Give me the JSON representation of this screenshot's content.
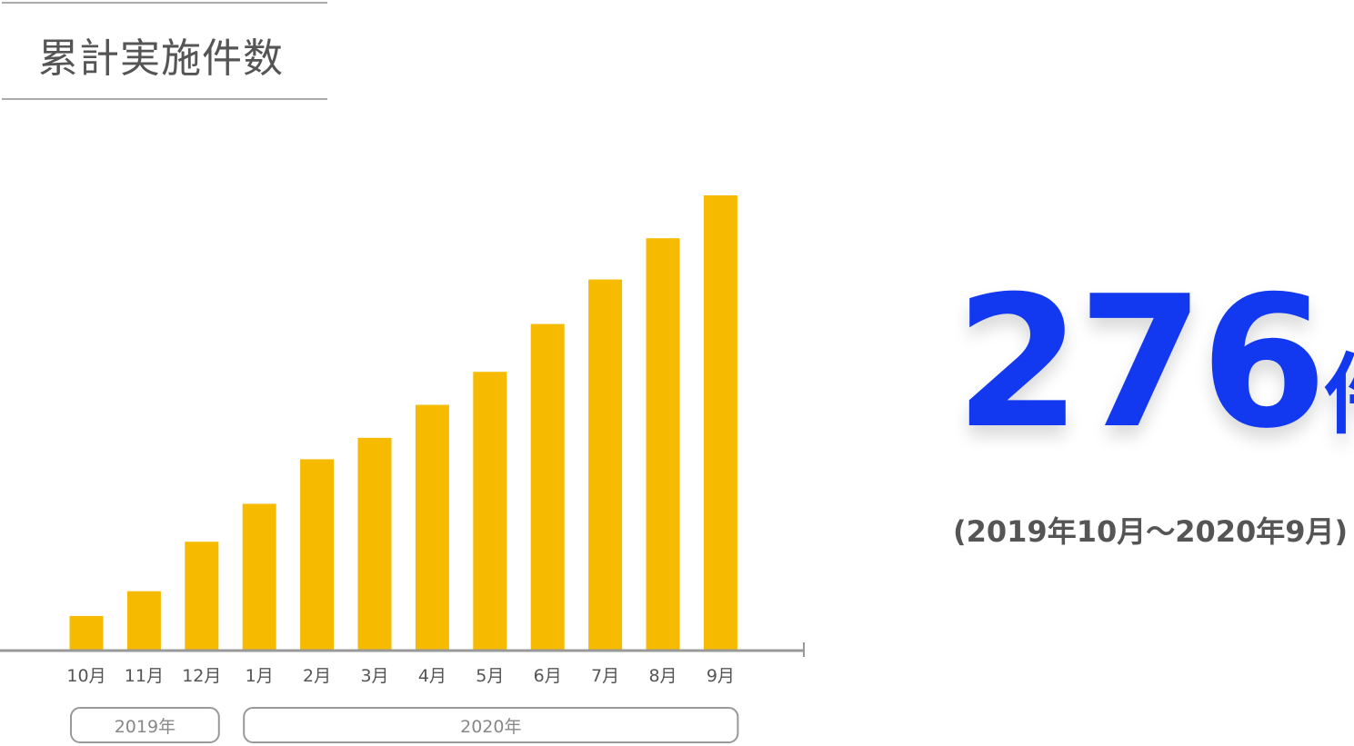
{
  "title": "累計実施件数",
  "total": {
    "value": "276",
    "unit": "件",
    "period": "(2019年10月〜2020年9月)"
  },
  "colors": {
    "bar": "#f6bb00",
    "total": "#1339f0",
    "axis": "#999999"
  },
  "chart_data": {
    "type": "bar",
    "categories": [
      "10月",
      "11月",
      "12月",
      "1月",
      "2月",
      "3月",
      "4月",
      "5月",
      "6月",
      "7月",
      "8月",
      "9月"
    ],
    "values": [
      21,
      36,
      66,
      89,
      116,
      129,
      149,
      169,
      198,
      225,
      250,
      276
    ],
    "year_groups": [
      {
        "label": "2019年",
        "months": [
          "10月",
          "11月",
          "12月"
        ]
      },
      {
        "label": "2020年",
        "months": [
          "1月",
          "2月",
          "3月",
          "4月",
          "5月",
          "6月",
          "7月",
          "8月",
          "9月"
        ]
      }
    ],
    "ylim": [
      0,
      276
    ],
    "grid": false,
    "y_axis_shown": false
  }
}
